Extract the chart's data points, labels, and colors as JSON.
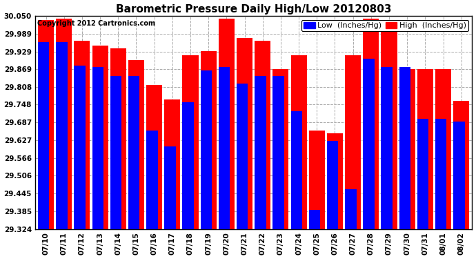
{
  "title": "Barometric Pressure Daily High/Low 20120803",
  "copyright": "Copyright 2012 Cartronics.com",
  "legend_low": "Low  (Inches/Hg)",
  "legend_high": "High  (Inches/Hg)",
  "dates": [
    "07/10",
    "07/11",
    "07/12",
    "07/13",
    "07/14",
    "07/15",
    "07/16",
    "07/17",
    "07/18",
    "07/19",
    "07/20",
    "07/21",
    "07/22",
    "07/23",
    "07/24",
    "07/25",
    "07/26",
    "07/27",
    "07/28",
    "07/29",
    "07/30",
    "07/31",
    "08/01",
    "08/02"
  ],
  "low_values": [
    29.96,
    29.96,
    29.88,
    29.875,
    29.845,
    29.845,
    29.66,
    29.605,
    29.755,
    29.865,
    29.875,
    29.82,
    29.845,
    29.845,
    29.725,
    29.39,
    29.625,
    29.46,
    29.905,
    29.875,
    29.875,
    29.7,
    29.7,
    29.69
  ],
  "high_values": [
    30.035,
    30.04,
    29.965,
    29.95,
    29.94,
    29.9,
    29.815,
    29.765,
    29.915,
    29.93,
    30.04,
    29.975,
    29.965,
    29.87,
    29.915,
    29.66,
    29.65,
    29.915,
    30.04,
    29.995,
    29.87,
    29.87,
    29.87,
    29.76
  ],
  "ymin": 29.324,
  "ymax": 30.05,
  "yticks": [
    30.05,
    29.989,
    29.929,
    29.869,
    29.808,
    29.748,
    29.687,
    29.627,
    29.566,
    29.506,
    29.445,
    29.385,
    29.324
  ],
  "bar_width": 0.42,
  "low_color": "#0000ff",
  "high_color": "#ff0000",
  "bg_color": "#ffffff",
  "grid_color": "#aaaaaa",
  "title_fontsize": 11,
  "copyright_fontsize": 7,
  "legend_fontsize": 8,
  "tick_fontsize": 7.5
}
